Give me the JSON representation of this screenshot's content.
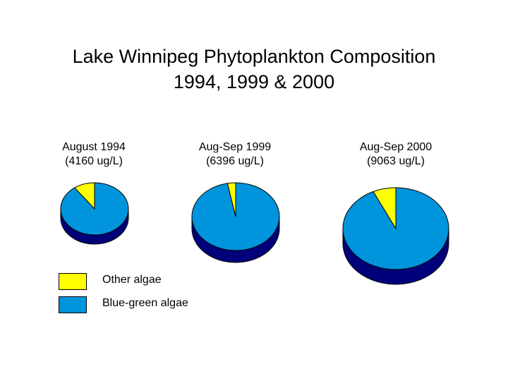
{
  "title": {
    "line1": "Lake Winnipeg Phytoplankton Composition",
    "line2": "1994, 1999 & 2000"
  },
  "chart_data": {
    "type": "pie",
    "categories": [
      "Other algae",
      "Blue-green algae"
    ],
    "colors": {
      "Other algae": "#ffff00",
      "Blue-green algae": "#0094dc",
      "side": "#00007a",
      "outline": "#000000"
    },
    "series": [
      {
        "label_line1": "August 1994",
        "label_line2": "(4160 ug/L)",
        "values": [
          10,
          90
        ]
      },
      {
        "label_line1": "Aug-Sep 1999",
        "label_line2": "(6396 ug/L)",
        "values": [
          3,
          97
        ]
      },
      {
        "label_line1": "Aug-Sep 2000",
        "label_line2": "(9063 ug/L)",
        "values": [
          7,
          93
        ]
      }
    ],
    "legend": {
      "placement": "bottom-left",
      "items": [
        {
          "label": "Other algae",
          "color": "#ffff00"
        },
        {
          "label": "Blue-green algae",
          "color": "#0094dc"
        }
      ]
    }
  }
}
